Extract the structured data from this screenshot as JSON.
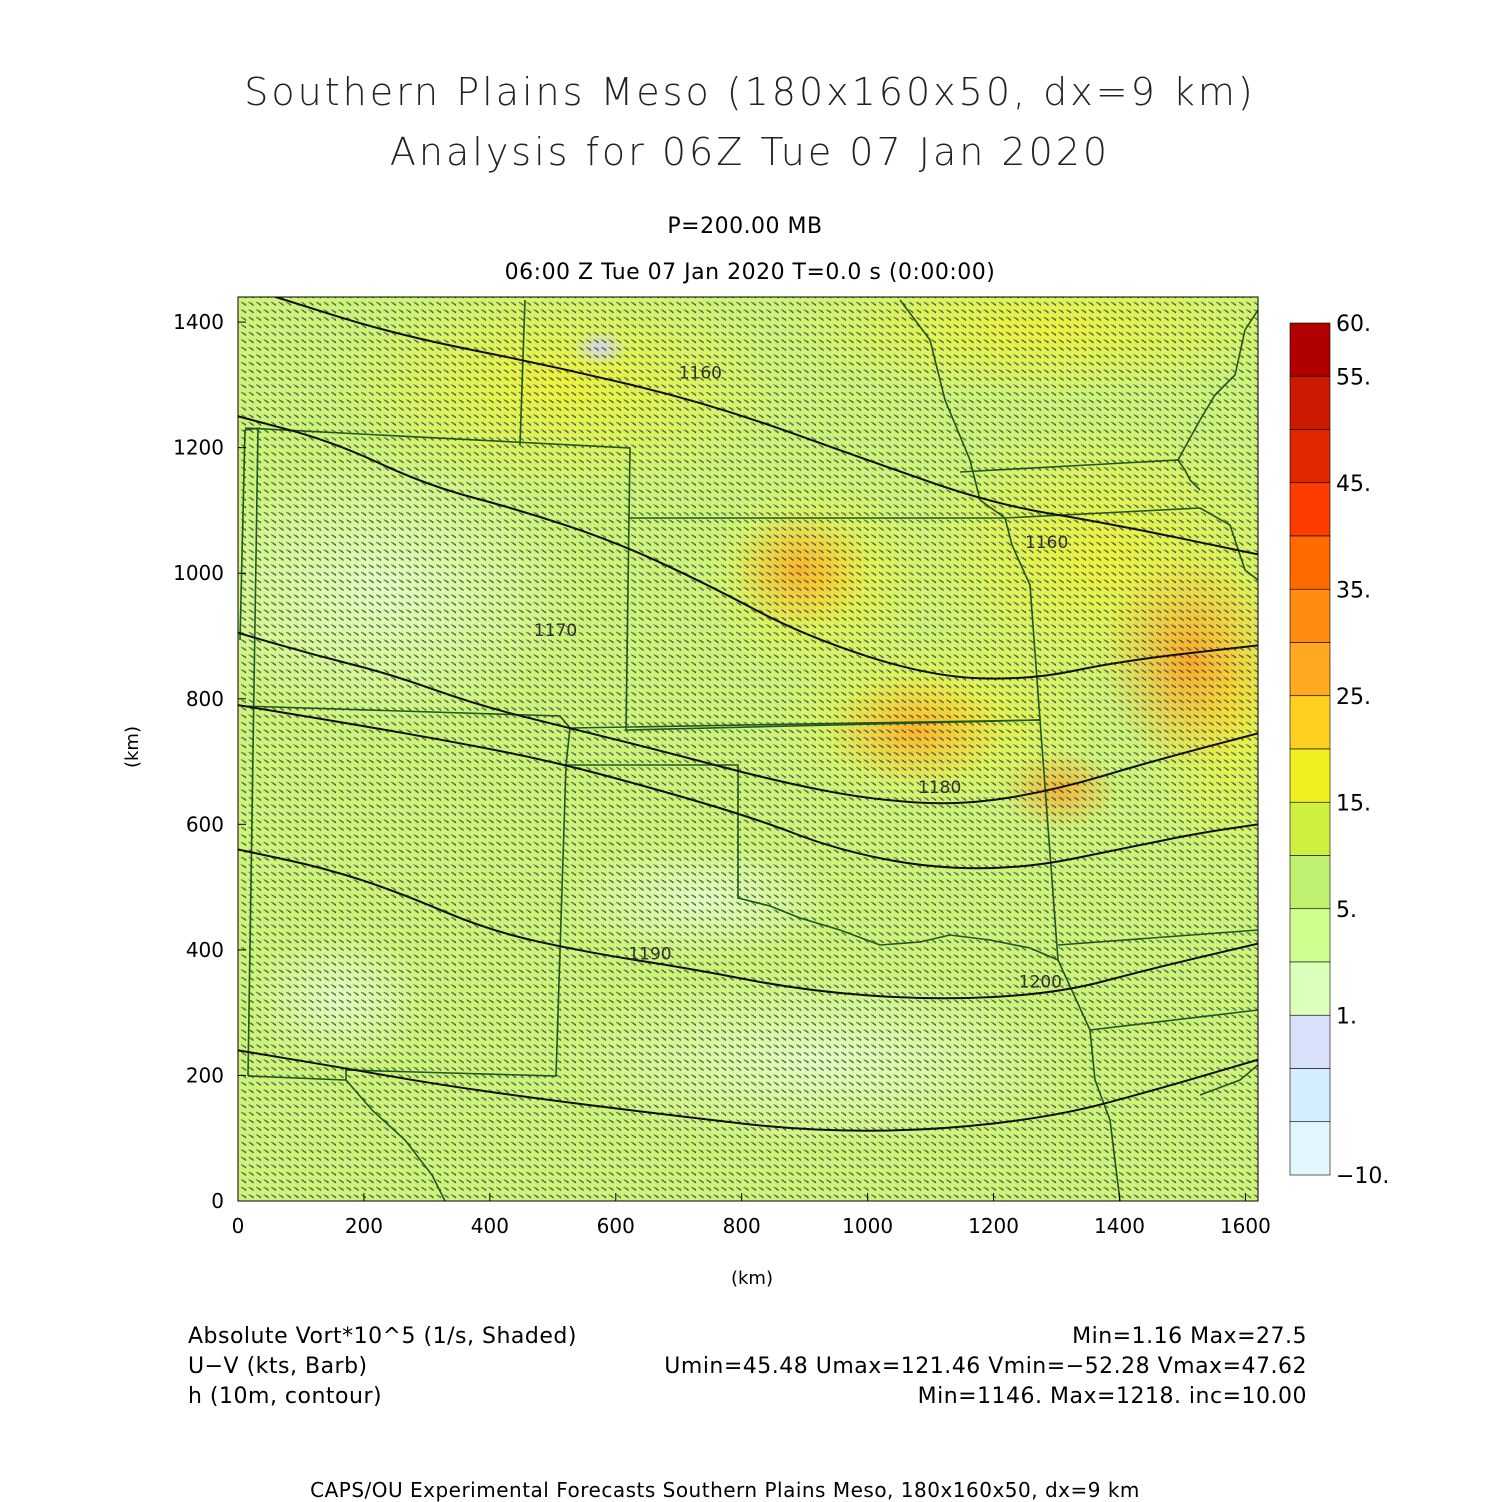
{
  "title_line1": "Southern Plains Meso (180x160x50, dx=9 km)",
  "title_line2": "Analysis for 06Z Tue 07 Jan 2020",
  "level": "P=200.00 MB",
  "valid_time": "06:00 Z Tue 07 Jan 2020    T=0.0 s (0:00:00)",
  "chart_data": {
    "type": "heatmap",
    "xlabel": "(km)",
    "ylabel": "(km)",
    "xlim": [
      0,
      1620
    ],
    "ylim": [
      0,
      1440
    ],
    "x_ticks": [
      "0",
      "200",
      "400",
      "600",
      "800",
      "1000",
      "1200",
      "1400",
      "1600"
    ],
    "y_ticks": [
      "0",
      "200",
      "400",
      "600",
      "800",
      "1000",
      "1200",
      "1400"
    ],
    "colorbar": {
      "labels": [
        "60.",
        "55.",
        "45.",
        "35.",
        "25.",
        "15.",
        "5.",
        "1.",
        "−10."
      ],
      "colors": [
        "#b00000",
        "#cc1a00",
        "#e02800",
        "#ff3c00",
        "#ff6a00",
        "#ff8c10",
        "#ffa820",
        "#ffd020",
        "#f0f020",
        "#d0f040",
        "#c0f070",
        "#d0ff90",
        "#dcffbc",
        "#d8e0fa",
        "#d4eeff",
        "#e4f6ff"
      ]
    },
    "contours": [
      {
        "label": "1160",
        "label_at": [
          700,
          1310
        ],
        "points": [
          [
            60,
            1440
          ],
          [
            250,
            1380
          ],
          [
            500,
            1330
          ],
          [
            750,
            1270
          ],
          [
            1000,
            1180
          ],
          [
            1200,
            1110
          ],
          [
            1380,
            1080
          ],
          [
            1620,
            1030
          ]
        ]
      },
      {
        "label": "1160",
        "label_at": [
          1250,
          1040
        ],
        "points": [
          [
            0,
            1250
          ],
          [
            150,
            1210
          ],
          [
            300,
            1140
          ],
          [
            450,
            1100
          ],
          [
            600,
            1050
          ],
          [
            750,
            980
          ],
          [
            900,
            900
          ],
          [
            1100,
            835
          ],
          [
            1260,
            830
          ],
          [
            1400,
            860
          ],
          [
            1620,
            885
          ]
        ]
      },
      {
        "label": "1170",
        "label_at": [
          470,
          900
        ],
        "points": [
          [
            0,
            905
          ],
          [
            120,
            870
          ],
          [
            240,
            840
          ],
          [
            380,
            790
          ],
          [
            520,
            755
          ],
          [
            680,
            715
          ],
          [
            850,
            670
          ],
          [
            1000,
            640
          ],
          [
            1150,
            630
          ],
          [
            1300,
            655
          ],
          [
            1450,
            700
          ],
          [
            1620,
            745
          ]
        ]
      },
      {
        "label": "1180",
        "label_at": [
          1080,
          650
        ],
        "points": [
          [
            0,
            790
          ],
          [
            180,
            760
          ],
          [
            350,
            730
          ],
          [
            500,
            700
          ],
          [
            650,
            660
          ],
          [
            820,
            610
          ],
          [
            950,
            560
          ],
          [
            1100,
            530
          ],
          [
            1250,
            530
          ],
          [
            1400,
            560
          ],
          [
            1520,
            585
          ],
          [
            1620,
            600
          ]
        ]
      },
      {
        "label": "1190",
        "label_at": [
          620,
          385
        ],
        "points": [
          [
            0,
            560
          ],
          [
            140,
            530
          ],
          [
            260,
            490
          ],
          [
            400,
            430
          ],
          [
            560,
            395
          ],
          [
            720,
            370
          ],
          [
            900,
            335
          ],
          [
            1100,
            320
          ],
          [
            1300,
            330
          ],
          [
            1450,
            370
          ],
          [
            1620,
            410
          ]
        ]
      },
      {
        "label": "1200",
        "label_at": [
          1240,
          340
        ],
        "points": [
          [
            0,
            240
          ],
          [
            150,
            215
          ],
          [
            320,
            185
          ],
          [
            500,
            160
          ],
          [
            700,
            135
          ],
          [
            900,
            112
          ],
          [
            1100,
            112
          ],
          [
            1300,
            135
          ],
          [
            1450,
            175
          ],
          [
            1620,
            225
          ]
        ]
      }
    ],
    "notes": "Absolute vorticity shading, wind barbs and 200 mb height contours over the Southern Plains domain"
  },
  "footer": {
    "left": [
      "Absolute Vort*10^5 (1/s, Shaded)",
      "U−V (kts, Barb)",
      "h (10m, contour)"
    ],
    "right": [
      "Min=1.16 Max=27.5",
      "Umin=45.48 Umax=121.46 Vmin=−52.28 Vmax=47.62",
      "Min=1146. Max=1218. inc=10.00"
    ]
  },
  "credit": "CAPS/OU Experimental Forecasts  Southern Plains Meso, 180x160x50, dx=9 km"
}
